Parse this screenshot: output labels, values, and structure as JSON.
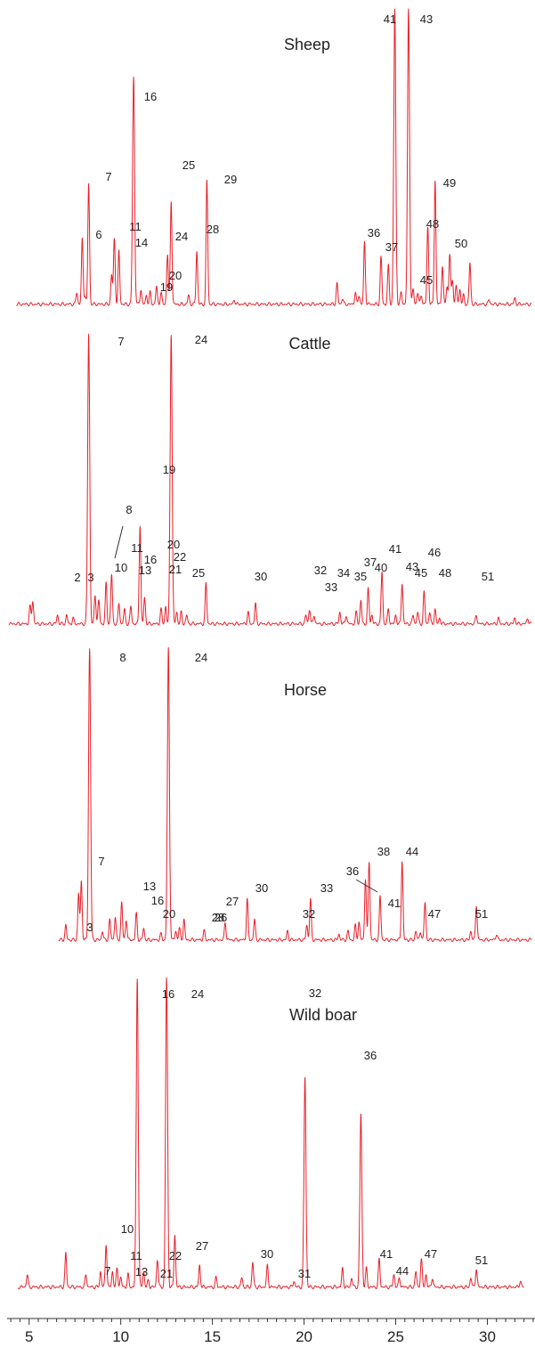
{
  "chart_data": {
    "type": "line",
    "line_color": "#e8202a",
    "text_color": "#222222",
    "x_axis": {
      "range": [
        3.8,
        32.6
      ],
      "major_ticks": [
        5,
        10,
        15,
        20,
        25,
        30
      ],
      "minor_step": 0.5,
      "labels": [
        "5",
        "10",
        "15",
        "20",
        "25",
        "30"
      ]
    },
    "panels": [
      {
        "title": "Sheep",
        "y_range": [
          0,
          100
        ],
        "peaks": [
          {
            "label": "6",
            "x": 7.9,
            "y": 22
          },
          {
            "label": "7",
            "x": 8.25,
            "y": 41
          },
          {
            "label": "11",
            "x": 9.65,
            "y": 22
          },
          {
            "label": "14",
            "x": 9.9,
            "y": 18
          },
          {
            "label": "16",
            "x": 10.7,
            "y": 77
          },
          {
            "label": "19",
            "x": 11.6,
            "y": 4
          },
          {
            "label": "20",
            "x": 11.95,
            "y": 6
          },
          {
            "label": "24",
            "x": 12.55,
            "y": 17
          },
          {
            "label": "25",
            "x": 12.75,
            "y": 35
          },
          {
            "label": "28",
            "x": 14.15,
            "y": 18
          },
          {
            "label": "29",
            "x": 14.7,
            "y": 42
          },
          {
            "label": "36",
            "x": 23.3,
            "y": 21
          },
          {
            "label": "37",
            "x": 24.2,
            "y": 16
          },
          {
            "label": "41",
            "x": 24.95,
            "y": 100
          },
          {
            "label": "43",
            "x": 25.7,
            "y": 100
          },
          {
            "label": "45",
            "x": 26.2,
            "y": 4
          },
          {
            "label": "48",
            "x": 26.75,
            "y": 26
          },
          {
            "label": "49",
            "x": 27.15,
            "y": 42
          },
          {
            "label": "50",
            "x": 27.95,
            "y": 17
          }
        ],
        "minor_peaks": [
          [
            7.6,
            4
          ],
          [
            8.05,
            3
          ],
          [
            9.5,
            10
          ],
          [
            11.1,
            5
          ],
          [
            11.4,
            3
          ],
          [
            12.2,
            4
          ],
          [
            13.7,
            3
          ],
          [
            16.2,
            1.5
          ],
          [
            21.8,
            7
          ],
          [
            22.1,
            2
          ],
          [
            22.8,
            4
          ],
          [
            23.0,
            3
          ],
          [
            24.6,
            13
          ],
          [
            25.3,
            4
          ],
          [
            25.95,
            5
          ],
          [
            26.4,
            3
          ],
          [
            27.55,
            13
          ],
          [
            27.8,
            6
          ],
          [
            28.1,
            8
          ],
          [
            28.3,
            6
          ],
          [
            28.5,
            5
          ],
          [
            28.7,
            3
          ],
          [
            29.05,
            14
          ],
          [
            30.1,
            1.5
          ],
          [
            31.5,
            2
          ]
        ]
      },
      {
        "title": "Cattle",
        "y_range": [
          0,
          100
        ],
        "peaks": [
          {
            "label": "2",
            "x": 6.55,
            "y": 3
          },
          {
            "label": "3",
            "x": 7.05,
            "y": 3
          },
          {
            "label": "7",
            "x": 8.25,
            "y": 100
          },
          {
            "label": "8",
            "x": 8.6,
            "y": 10
          },
          {
            "label": "10",
            "x": 9.2,
            "y": 14
          },
          {
            "label": "11",
            "x": 9.5,
            "y": 17
          },
          {
            "label": "13",
            "x": 10.2,
            "y": 5
          },
          {
            "label": "16",
            "x": 10.55,
            "y": 6
          },
          {
            "label": "19",
            "x": 11.05,
            "y": 34
          },
          {
            "label": "20",
            "x": 11.3,
            "y": 9
          },
          {
            "label": "21",
            "x": 12.2,
            "y": 5
          },
          {
            "label": "22",
            "x": 12.45,
            "y": 6
          },
          {
            "label": "24",
            "x": 12.75,
            "y": 100
          },
          {
            "label": "25",
            "x": 13.3,
            "y": 4
          },
          {
            "label": "30",
            "x": 17.35,
            "y": 7
          },
          {
            "label": "32",
            "x": 20.3,
            "y": 5
          },
          {
            "label": "33",
            "x": 20.55,
            "y": 3
          },
          {
            "label": "34",
            "x": 21.95,
            "y": 4
          },
          {
            "label": "35",
            "x": 22.3,
            "y": 3
          },
          {
            "label": "37",
            "x": 23.1,
            "y": 8
          },
          {
            "label": "40",
            "x": 23.5,
            "y": 12
          },
          {
            "label": "41",
            "x": 24.25,
            "y": 18
          },
          {
            "label": "43",
            "x": 25.35,
            "y": 14
          },
          {
            "label": "45",
            "x": 25.95,
            "y": 3
          },
          {
            "label": "46",
            "x": 26.55,
            "y": 11
          },
          {
            "label": "48",
            "x": 27.15,
            "y": 5
          },
          {
            "label": "51",
            "x": 29.4,
            "y": 3
          }
        ],
        "minor_peaks": [
          [
            5.2,
            8
          ],
          [
            5.05,
            6
          ],
          [
            7.4,
            2
          ],
          [
            8.8,
            8
          ],
          [
            9.9,
            7
          ],
          [
            13.05,
            4
          ],
          [
            13.6,
            3
          ],
          [
            14.65,
            14
          ],
          [
            16.95,
            4
          ],
          [
            20.1,
            3
          ],
          [
            22.85,
            4
          ],
          [
            23.7,
            3
          ],
          [
            24.6,
            5
          ],
          [
            25.0,
            3
          ],
          [
            26.2,
            4
          ],
          [
            26.85,
            4
          ],
          [
            27.4,
            2
          ],
          [
            30.6,
            2
          ],
          [
            31.5,
            2
          ],
          [
            32.2,
            2
          ]
        ]
      },
      {
        "title": "Horse",
        "y_range": [
          0,
          100
        ],
        "peaks": [
          {
            "label": "3",
            "x": 7.0,
            "y": 5
          },
          {
            "label": "7",
            "x": 7.85,
            "y": 20
          },
          {
            "label": "8",
            "x": 8.3,
            "y": 100
          },
          {
            "label": "13",
            "x": 10.05,
            "y": 13
          },
          {
            "label": "16",
            "x": 10.85,
            "y": 9
          },
          {
            "label": "20",
            "x": 11.25,
            "y": 4
          },
          {
            "label": "24",
            "x": 12.6,
            "y": 100
          },
          {
            "label": "26",
            "x": 13.2,
            "y": 4
          },
          {
            "label": "27",
            "x": 13.45,
            "y": 7
          },
          {
            "label": "28",
            "x": 14.55,
            "y": 3
          },
          {
            "label": "30",
            "x": 16.9,
            "y": 14
          },
          {
            "label": "32",
            "x": 20.15,
            "y": 5
          },
          {
            "label": "33",
            "x": 20.35,
            "y": 14
          },
          {
            "label": "36",
            "x": 23.35,
            "y": 21
          },
          {
            "label": "38",
            "x": 23.55,
            "y": 27
          },
          {
            "label": "41",
            "x": 24.15,
            "y": 15
          },
          {
            "label": "44",
            "x": 25.35,
            "y": 27
          },
          {
            "label": "47",
            "x": 26.6,
            "y": 13
          },
          {
            "label": "51",
            "x": 29.4,
            "y": 12
          }
        ],
        "minor_peaks": [
          [
            7.7,
            16
          ],
          [
            9.0,
            3
          ],
          [
            9.4,
            7
          ],
          [
            9.7,
            8
          ],
          [
            10.3,
            7
          ],
          [
            12.2,
            2
          ],
          [
            13.0,
            3
          ],
          [
            15.7,
            6
          ],
          [
            17.3,
            7
          ],
          [
            19.1,
            3
          ],
          [
            21.9,
            2
          ],
          [
            22.4,
            3
          ],
          [
            22.8,
            5
          ],
          [
            23.0,
            6
          ],
          [
            26.1,
            3
          ],
          [
            26.35,
            3
          ],
          [
            29.1,
            3
          ],
          [
            30.5,
            2
          ]
        ]
      },
      {
        "title": "Wild boar",
        "y_range": [
          0,
          100
        ],
        "peaks": [
          {
            "label": "7",
            "x": 8.1,
            "y": 4
          },
          {
            "label": "10",
            "x": 9.2,
            "y": 14
          },
          {
            "label": "11",
            "x": 9.55,
            "y": 5
          },
          {
            "label": "13",
            "x": 10.0,
            "y": 3
          },
          {
            "label": "16",
            "x": 10.9,
            "y": 100
          },
          {
            "label": "21",
            "x": 11.5,
            "y": 2
          },
          {
            "label": "22",
            "x": 12.0,
            "y": 9
          },
          {
            "label": "24",
            "x": 12.5,
            "y": 100
          },
          {
            "label": "27",
            "x": 12.95,
            "y": 17
          },
          {
            "label": "30",
            "x": 17.2,
            "y": 8
          },
          {
            "label": "31",
            "x": 19.45,
            "y": 2
          },
          {
            "label": "32",
            "x": 20.05,
            "y": 68
          },
          {
            "label": "36",
            "x": 23.1,
            "y": 56
          },
          {
            "label": "41",
            "x": 24.1,
            "y": 9
          },
          {
            "label": "44",
            "x": 24.9,
            "y": 4
          },
          {
            "label": "47",
            "x": 26.4,
            "y": 9
          },
          {
            "label": "51",
            "x": 29.4,
            "y": 6
          }
        ],
        "minor_peaks": [
          [
            4.9,
            4
          ],
          [
            7.0,
            11
          ],
          [
            8.9,
            5
          ],
          [
            9.8,
            6
          ],
          [
            10.4,
            4
          ],
          [
            11.25,
            5
          ],
          [
            14.3,
            7
          ],
          [
            15.2,
            3
          ],
          [
            16.6,
            3
          ],
          [
            18.0,
            7
          ],
          [
            22.1,
            6
          ],
          [
            22.6,
            3
          ],
          [
            23.4,
            6
          ],
          [
            25.2,
            3
          ],
          [
            26.1,
            5
          ],
          [
            26.65,
            4
          ],
          [
            27.0,
            3
          ],
          [
            29.1,
            3
          ],
          [
            31.8,
            2
          ]
        ]
      }
    ]
  }
}
